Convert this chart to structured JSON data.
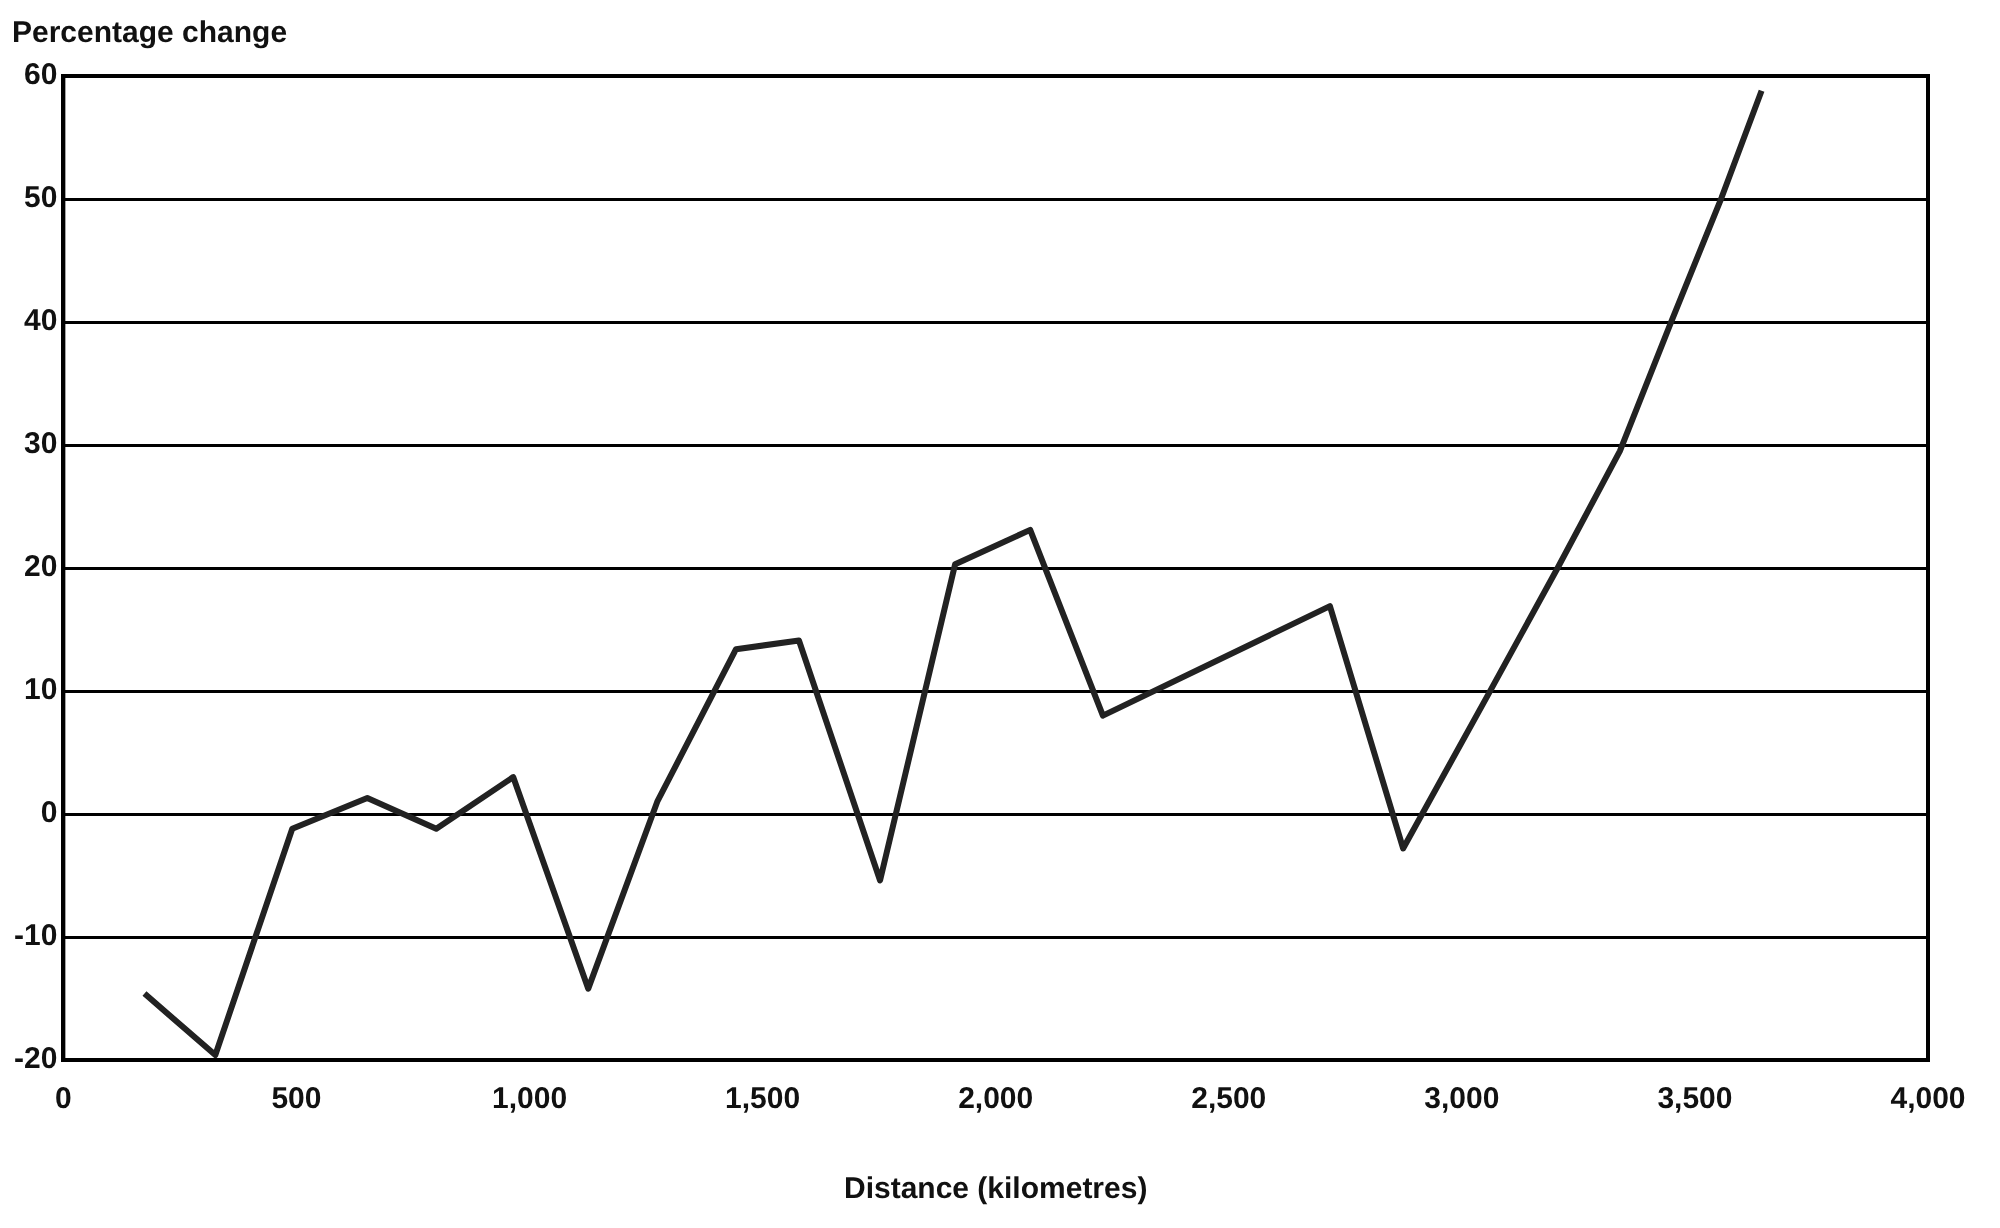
{
  "chart_data": {
    "type": "line",
    "xlabel": "Distance (kilometres)",
    "ylabel": "Percentage change",
    "x": [
      174,
      326,
      491,
      652,
      800,
      965,
      1126,
      1274,
      1443,
      1578,
      1752,
      1913,
      2074,
      2230,
      2717,
      2874,
      3052,
      3204,
      3339,
      3448,
      3557,
      3643
    ],
    "series": [
      {
        "color": "#222222",
        "values": [
          -14.6,
          -19.6,
          -1.2,
          1.3,
          -1.2,
          3.0,
          -14.2,
          1.0,
          13.4,
          14.1,
          -5.4,
          20.3,
          23.1,
          8.0,
          16.9,
          -2.8,
          9.4,
          19.9,
          29.5,
          39.9,
          50.1,
          58.8
        ]
      }
    ],
    "xlim": [
      0,
      4000
    ],
    "xticks": [
      0,
      {
        "value": 500,
        "label": "500"
      },
      {
        "value": 1000,
        "label": "1,000"
      },
      {
        "value": 1500,
        "label": "1,500"
      },
      {
        "value": 2000,
        "label": "2,000"
      },
      {
        "value": 2500,
        "label": "2,500"
      },
      {
        "value": 3000,
        "label": "3,000"
      },
      {
        "value": 3500,
        "label": "3,500"
      },
      {
        "value": 4000,
        "label": "4,000"
      }
    ],
    "ylim": [
      -20,
      60
    ],
    "yticks": [
      -20,
      -10,
      0,
      10,
      20,
      30,
      40,
      50,
      60
    ],
    "grid": "y",
    "legend": false,
    "marker": "none",
    "line_style": "solid"
  }
}
